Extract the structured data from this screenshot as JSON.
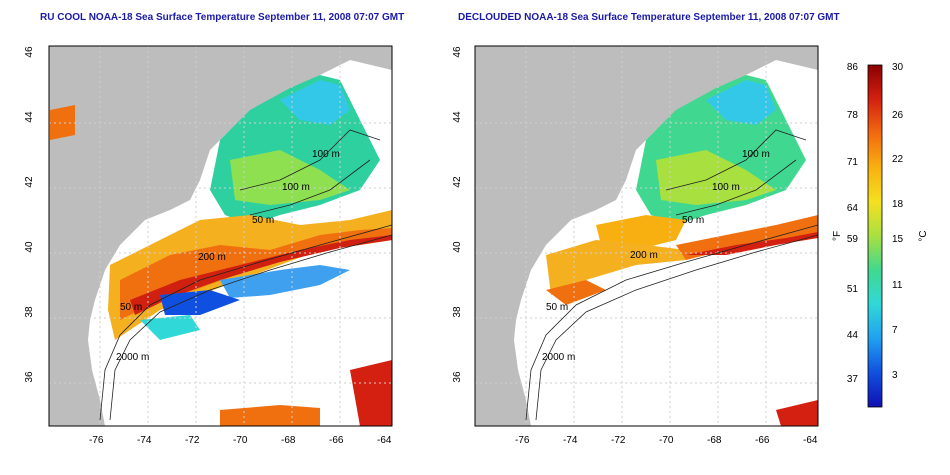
{
  "left_map": {
    "title": "RU COOL NOAA-18 Sea Surface Temperature September 11, 2008 07:07 GMT",
    "lon_ticks": [
      "-76",
      "-74",
      "-72",
      "-70",
      "-68",
      "-66",
      "-64"
    ],
    "lat_ticks": [
      "46",
      "44",
      "42",
      "40",
      "38",
      "36"
    ],
    "contour_labels": [
      "100 m",
      "100 m",
      "50 m",
      "200 m",
      "50 m",
      "2000 m"
    ]
  },
  "right_map": {
    "title": "DECLOUDED NOAA-18 Sea Surface Temperature September 11, 2008 07:07 GMT",
    "lon_ticks": [
      "-76",
      "-74",
      "-72",
      "-70",
      "-68",
      "-66",
      "-64"
    ],
    "lat_ticks": [
      "46",
      "44",
      "42",
      "40",
      "38",
      "36"
    ],
    "contour_labels": [
      "100 m",
      "100 m",
      "50 m",
      "200 m",
      "50 m",
      "2000 m"
    ]
  },
  "colorbar": {
    "fahrenheit_ticks": [
      "86",
      "78",
      "71",
      "64",
      "59",
      "51",
      "44",
      "37"
    ],
    "celsius_ticks": [
      "30",
      "26",
      "22",
      "18",
      "15",
      "11",
      "7",
      "3"
    ],
    "fahrenheit_unit": "°F",
    "celsius_unit": "°C",
    "colors": [
      "#8b0000",
      "#d42010",
      "#f26a10",
      "#f8b010",
      "#f5e020",
      "#a8e040",
      "#40d890",
      "#30d8d8",
      "#20a0f0",
      "#1050e0",
      "#1010b0"
    ]
  }
}
